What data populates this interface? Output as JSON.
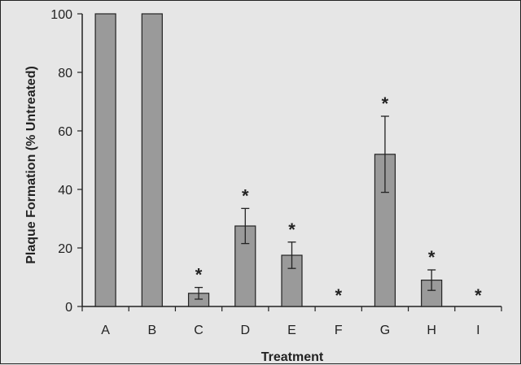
{
  "chart_data": {
    "type": "bar",
    "xlabel": "Treatment",
    "ylabel": "Plaque Formation (% Untreated)",
    "categories": [
      "A",
      "B",
      "C",
      "D",
      "E",
      "F",
      "G",
      "H",
      "I"
    ],
    "values": [
      100,
      100,
      4.5,
      27.5,
      17.5,
      0,
      52,
      9,
      0
    ],
    "errors": [
      null,
      null,
      2,
      6,
      4.5,
      null,
      13,
      3.5,
      null
    ],
    "significance_marker": "*",
    "significant": [
      false,
      false,
      true,
      true,
      true,
      true,
      true,
      true,
      true
    ],
    "ylim": [
      0,
      100
    ],
    "yticks": [
      0,
      20,
      40,
      60,
      80,
      100
    ],
    "grid": false,
    "legend": "none",
    "colors": {
      "bar": "#9a9a9a",
      "bar_stroke": "#222222",
      "background": "#e6e6e6",
      "text": "#222222"
    }
  }
}
